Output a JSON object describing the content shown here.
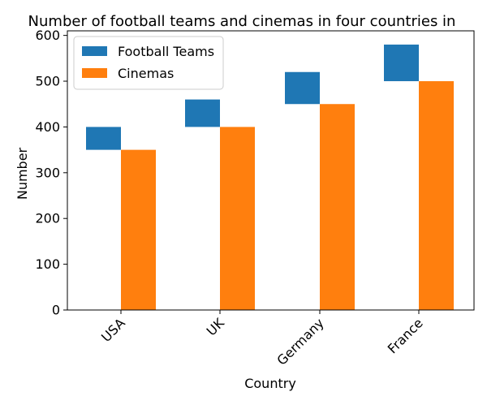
{
  "chart_data": {
    "type": "bar",
    "title": "Number of football teams and cinemas in four countries in",
    "xlabel": "Country",
    "ylabel": "Number",
    "ylim": [
      0,
      610
    ],
    "yticks": [
      0,
      100,
      200,
      300,
      400,
      500,
      600
    ],
    "categories": [
      "USA",
      "UK",
      "Germany",
      "France"
    ],
    "series": [
      {
        "name": "Football Teams",
        "color": "#1f77b4",
        "values": [
          400,
          460,
          520,
          580
        ],
        "base": [
          350,
          400,
          450,
          500
        ]
      },
      {
        "name": "Cinemas",
        "color": "#ff7f0e",
        "values": [
          350,
          400,
          450,
          500
        ],
        "base": [
          0,
          0,
          0,
          0
        ]
      }
    ],
    "legend": "top-left",
    "grid": false
  }
}
